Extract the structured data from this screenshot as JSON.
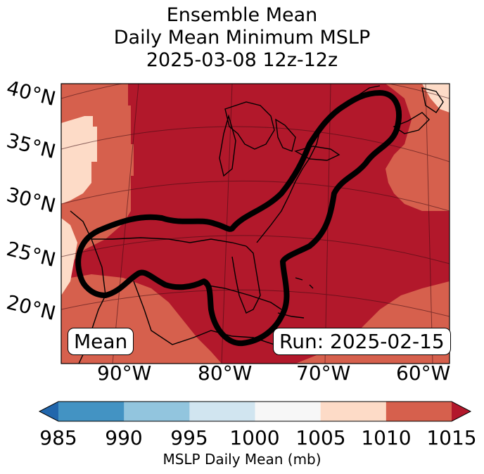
{
  "title": {
    "line1": "Ensemble Mean",
    "line2": "Daily Mean Minimum MSLP",
    "line3": "2025-03-08 12z-12z"
  },
  "latitude_labels": [
    "40°N",
    "35°N",
    "30°N",
    "25°N",
    "20°N"
  ],
  "longitude_labels": [
    "90°W",
    "80°W",
    "70°W",
    "60°W"
  ],
  "boxes": {
    "left": "Mean",
    "right": "Run: 2025-02-15"
  },
  "colorbar": {
    "ticks": [
      "985",
      "990",
      "995",
      "1000",
      "1005",
      "1010",
      "1015"
    ],
    "colors": [
      "#2166ac",
      "#4393c3",
      "#92c5de",
      "#d1e5f0",
      "#f7f7f7",
      "#fddbc7",
      "#d6604d",
      "#b2182b"
    ],
    "label": "MSLP Daily Mean (mb)"
  },
  "map_colors": {
    "bin_1015_plus": "#b2182b",
    "bin_1010_1015": "#d6604d",
    "bin_1005_1010": "#fddbc7"
  }
}
